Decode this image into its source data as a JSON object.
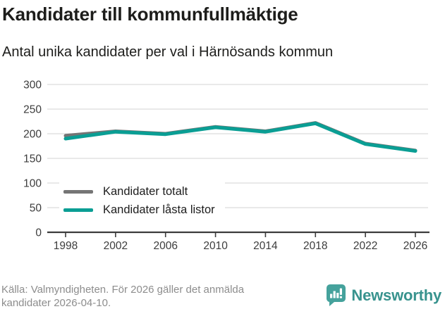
{
  "header": {
    "title": "Kandidater till kommunfullmäktige",
    "subtitle": "Antal unika kandidater per val i Härnösands kommun"
  },
  "chart_data": {
    "type": "line",
    "x": [
      1998,
      2002,
      2006,
      2010,
      2014,
      2018,
      2022,
      2026
    ],
    "series": [
      {
        "name": "Kandidater totalt",
        "color": "#757575",
        "values": [
          196,
          205,
          200,
          214,
          205,
          222,
          180,
          166
        ]
      },
      {
        "name": "Kandidater låsta listor",
        "color": "#0a9e94",
        "values": [
          190,
          204,
          199,
          213,
          204,
          221,
          179,
          165
        ]
      }
    ],
    "ylim": [
      0,
      300
    ],
    "yticks": [
      0,
      50,
      100,
      150,
      200,
      250,
      300
    ],
    "grid": true,
    "legend_position": "inside-bottom-left",
    "colors": {
      "gridline": "#e2e2e2",
      "axis": "#3c3c3c",
      "tick_label": "#3c3c3c"
    }
  },
  "footer": {
    "source_line1": "Källa: Valmyndigheten. För 2026 gäller det anmälda",
    "source_line2": "kandidater 2026-04-10."
  },
  "brand": {
    "name": "Newsworthy",
    "icon": "newsworthy-bubble-barchart-icon",
    "icon_color": "#45a29c",
    "text_color": "#38938e"
  }
}
